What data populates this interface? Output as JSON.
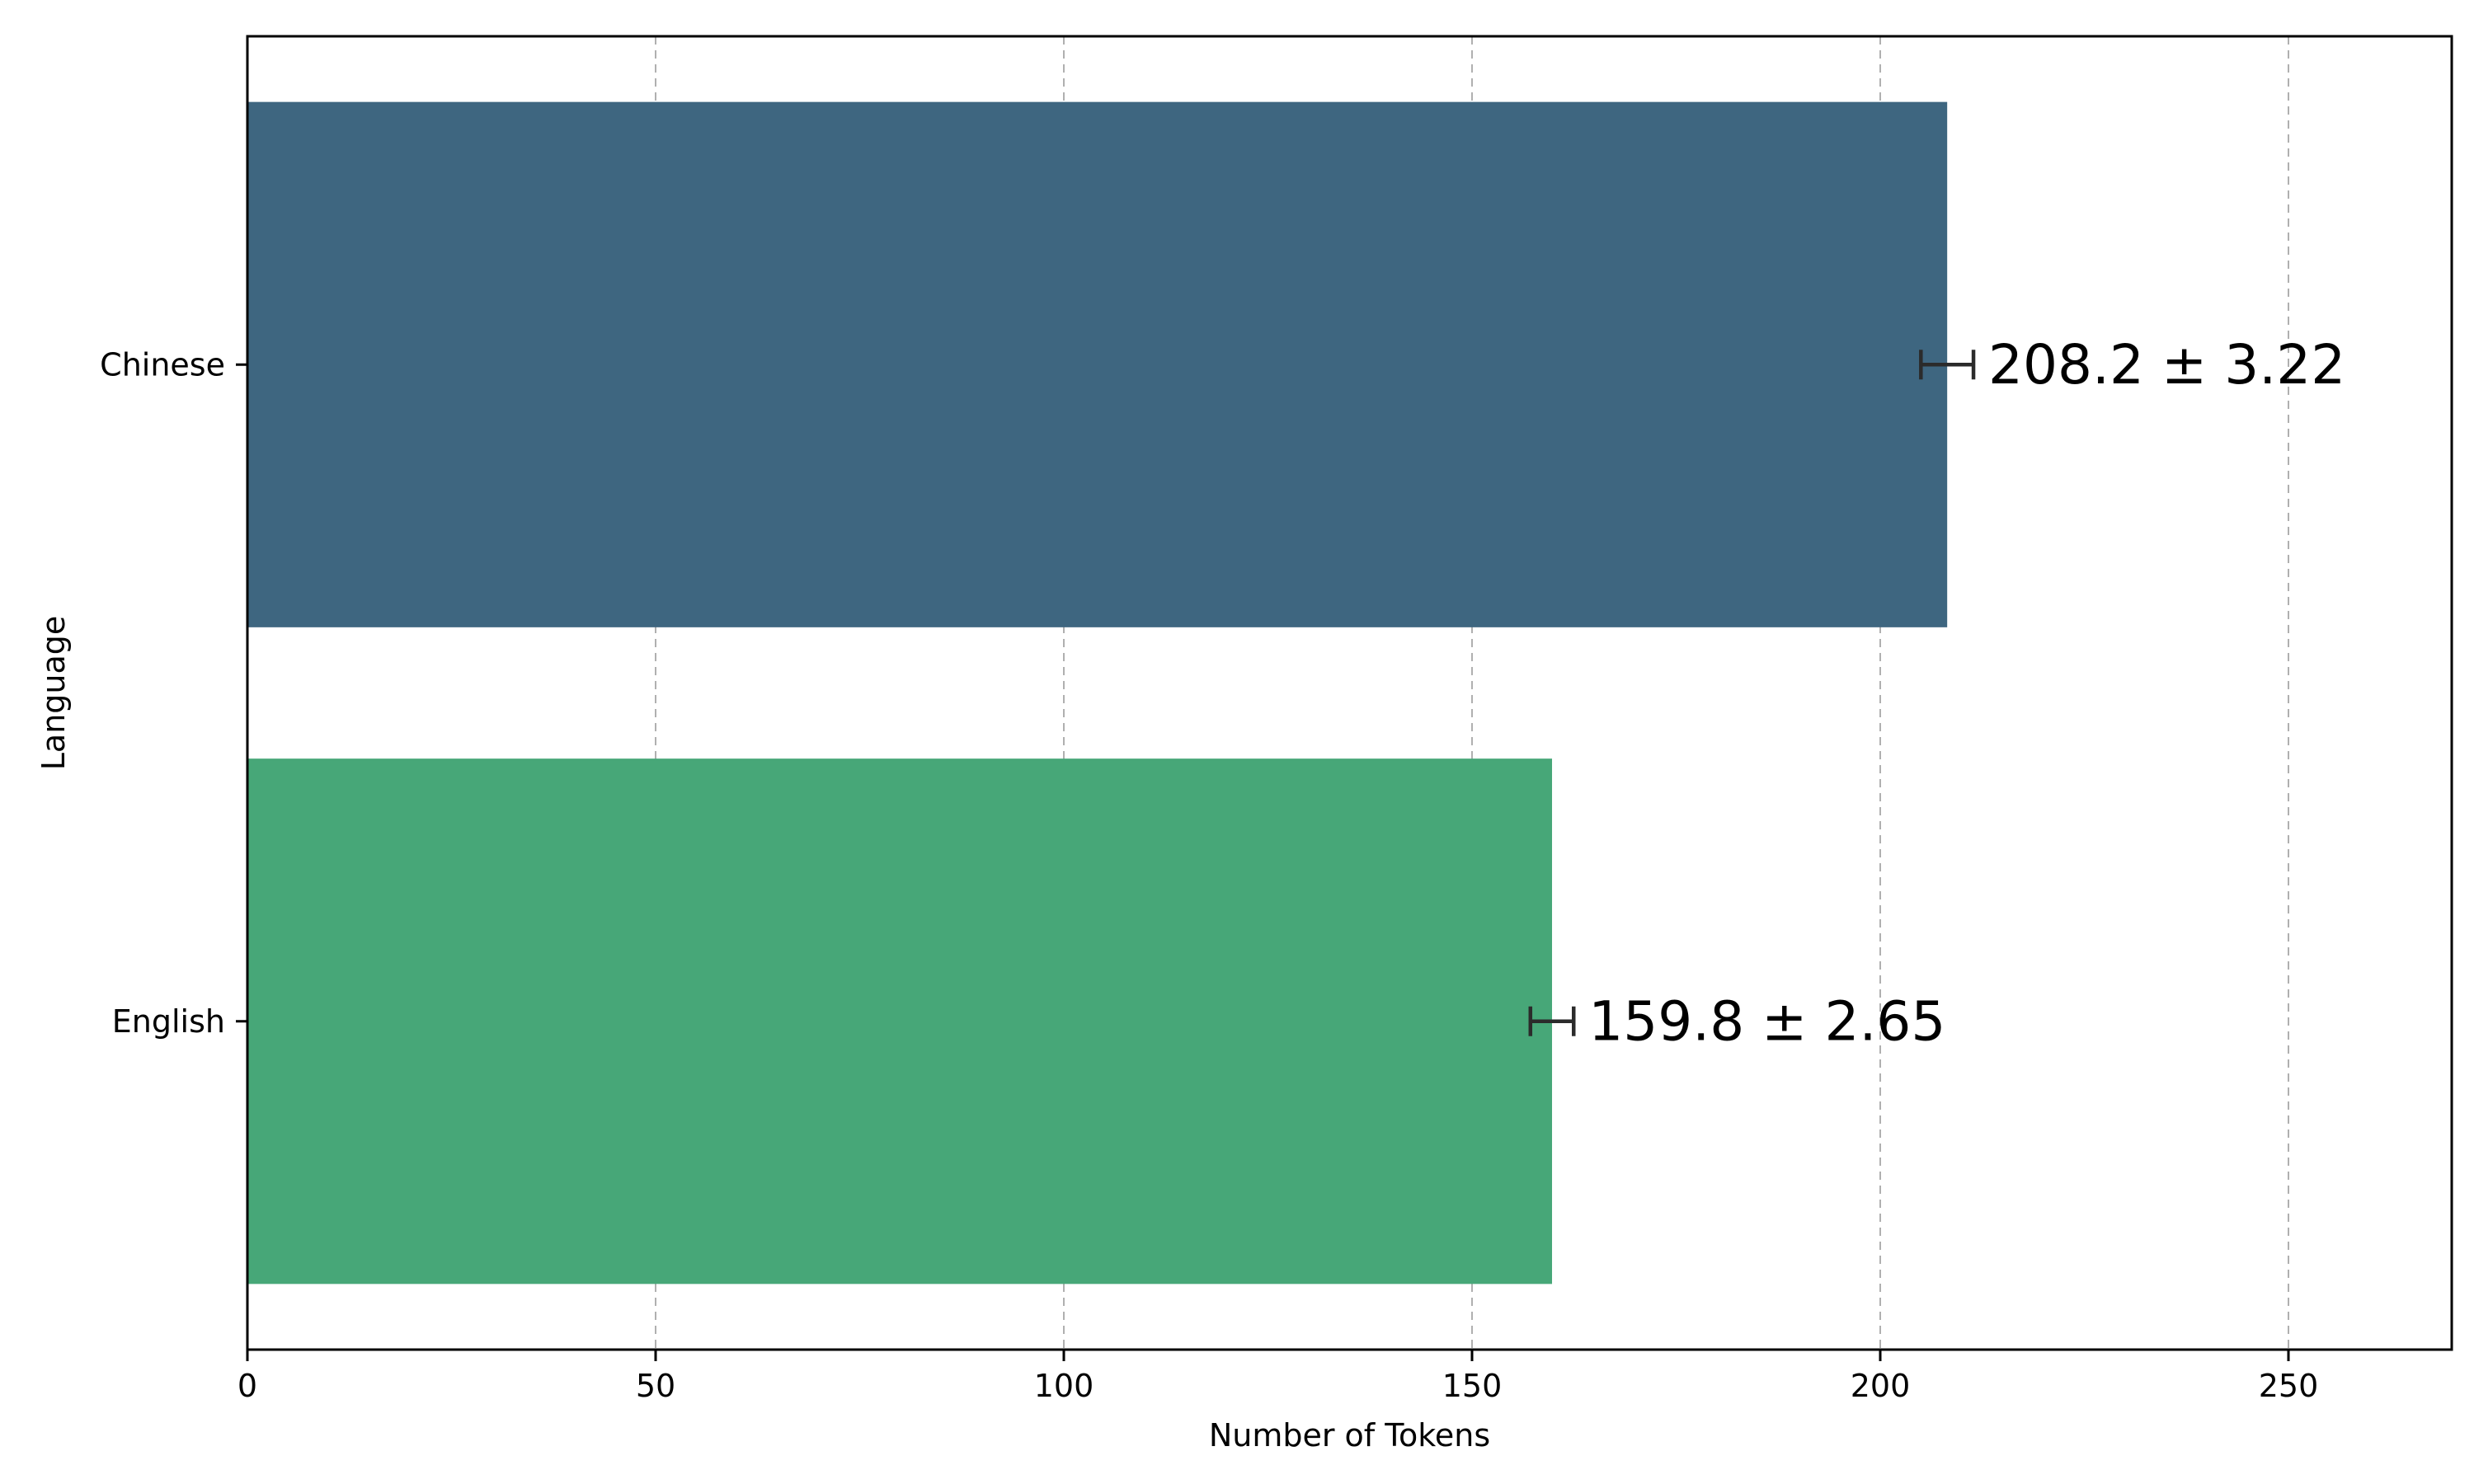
{
  "chart_data": {
    "type": "bar",
    "orientation": "horizontal",
    "xlabel": "Number of Tokens",
    "ylabel": "Language",
    "xlim": [
      0,
      270
    ],
    "xticks": [
      0,
      50,
      100,
      150,
      200,
      250
    ],
    "xtick_labels": [
      "0",
      "50",
      "100",
      "150",
      "200",
      "250"
    ],
    "grid": "vertical dashed",
    "categories": [
      "Chinese",
      "English"
    ],
    "values": [
      208.2,
      159.8
    ],
    "errors": [
      3.22,
      2.65
    ],
    "value_labels": [
      "208.2 ± 3.22",
      "159.8 ± 2.65"
    ],
    "colors": [
      "#3e6680",
      "#47a778"
    ]
  }
}
